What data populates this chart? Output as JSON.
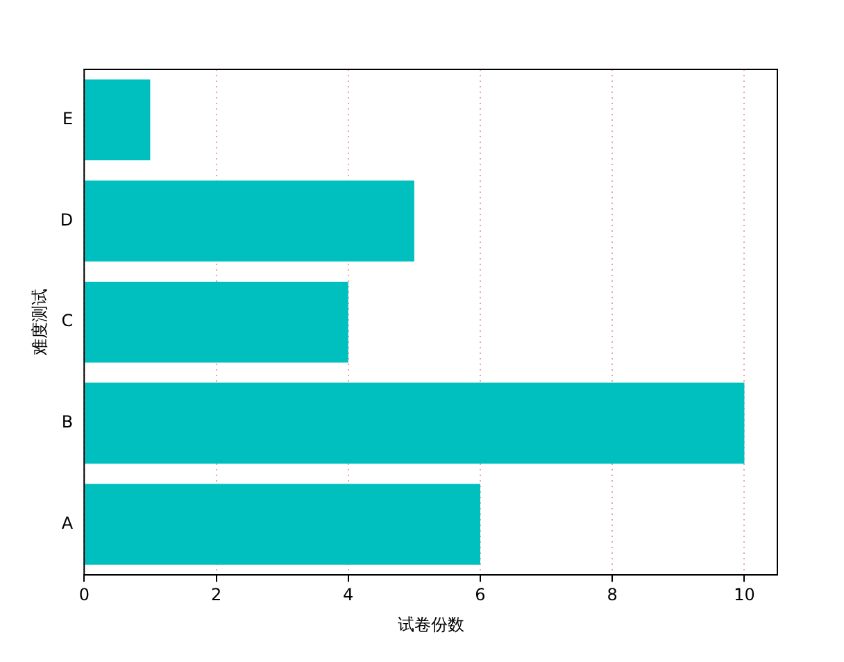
{
  "chart_data": {
    "type": "bar",
    "orientation": "horizontal",
    "categories": [
      "E",
      "D",
      "C",
      "B",
      "A"
    ],
    "values": [
      1,
      5,
      4,
      10,
      6
    ],
    "color": "#00bfbf",
    "xlabel": "试卷份数",
    "ylabel": "难度测试",
    "xlim": [
      0,
      10.5
    ],
    "xticks": [
      0,
      2,
      4,
      6,
      8,
      10
    ],
    "grid": "x",
    "legend": false
  }
}
